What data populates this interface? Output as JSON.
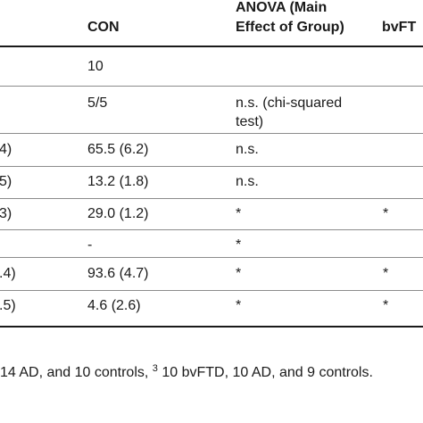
{
  "header": {
    "con": "CON",
    "anova_line1": "ANOVA (Main",
    "anova_line2": "Effect of Group)",
    "bvftd_partial": "bvFT"
  },
  "rows": [
    {
      "left": "",
      "con": "10",
      "anova": "",
      "anova2": "",
      "bv": ""
    },
    {
      "left": "",
      "con": "5/5",
      "anova": "n.s. (chi-squared",
      "anova2": "test)",
      "bv": ""
    },
    {
      "left": "4)",
      "con": "65.5 (6.2)",
      "anova": "n.s.",
      "anova2": "",
      "bv": ""
    },
    {
      "left": "5)",
      "con": "13.2 (1.8)",
      "anova": "n.s.",
      "anova2": "",
      "bv": ""
    },
    {
      "left": "3)",
      "con": "29.0 (1.2)",
      "anova": "*",
      "anova2": "",
      "bv": "*"
    },
    {
      "left": "",
      "con": "-",
      "anova": "*",
      "anova2": "",
      "bv": ""
    },
    {
      "left": ".4)",
      "con": "93.6 (4.7)",
      "anova": "*",
      "anova2": "",
      "bv": "*"
    },
    {
      "left": ".5)",
      "con": "4.6 (2.6)",
      "anova": "*",
      "anova2": "",
      "bv": "*"
    }
  ],
  "footnote": {
    "part1": "14 AD, and 10 controls, ",
    "sup": "3",
    "part2": " 10 bvFTD, 10 AD, and 9 controls."
  }
}
